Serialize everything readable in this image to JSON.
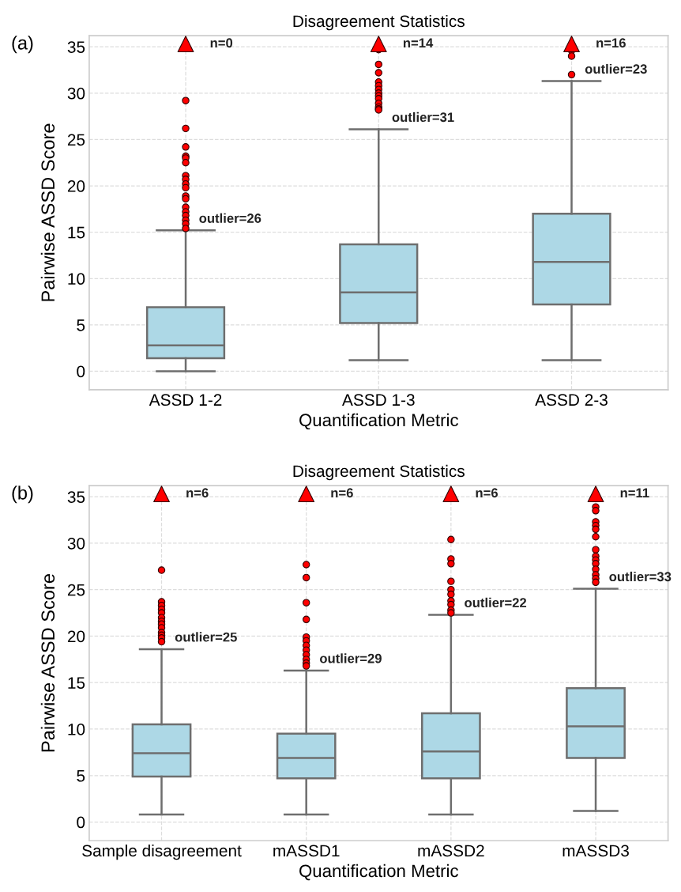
{
  "chart_data": [
    {
      "type": "box",
      "title": "Disagreement Statistics",
      "xlabel": "Quantification Metric",
      "ylabel": "Pairwise ASSD Score",
      "categories": [
        "ASSD 1-2",
        "ASSD 1-3",
        "ASSD 2-3"
      ],
      "color": "#add8e6",
      "boxes": [
        {
          "low": 0,
          "q1": 1.4,
          "median": 2.8,
          "q3": 6.9,
          "high": 15.2,
          "outliers": [
            29.2,
            26.2,
            24.2,
            23.2,
            23.0,
            22.5,
            21.1,
            20.7,
            20.2,
            19.8,
            18.9,
            18.6,
            17.7,
            17.2,
            16.8,
            16.3,
            15.9,
            15.4
          ]
        },
        {
          "low": 1.2,
          "q1": 5.2,
          "median": 8.5,
          "q3": 13.7,
          "high": 26.1,
          "outliers": [
            34.7,
            33.1,
            32.2,
            31.2,
            30.8,
            30.4,
            30.0,
            29.7,
            29.4,
            28.9,
            28.5,
            28.3,
            28.2
          ]
        },
        {
          "low": 1.2,
          "q1": 7.2,
          "median": 11.8,
          "q3": 17.0,
          "high": 31.3,
          "outliers": [
            34.6,
            34.0,
            32.0
          ]
        }
      ],
      "series": [
        {
          "type": "scatter",
          "color": "#ff0000",
          "marker": "triangle",
          "x": [
            "ASSD 1-2",
            "ASSD 1-3",
            "ASSD 2-3"
          ],
          "values": [
            35.3,
            35.3,
            35.3
          ]
        }
      ],
      "ylim": [
        -2,
        36.2
      ],
      "yticks": [
        0,
        5,
        10,
        15,
        20,
        25,
        30,
        35
      ],
      "grid": true,
      "annotations": [
        "(a)",
        {
          "text": "n=0",
          "x": "ASSD 1-2",
          "y": 35.3
        },
        {
          "text": "n=14",
          "x": "ASSD 1-3",
          "y": 35.3
        },
        {
          "text": "n=16",
          "x": "ASSD 2-3",
          "y": 35.3
        },
        "outlier=26",
        "outlier=31",
        "outlier=23"
      ]
    },
    {
      "type": "box",
      "title": "Disagreement Statistics",
      "xlabel": "Quantification Metric",
      "ylabel": "Pairwise ASSD Score",
      "categories": [
        "Sample disagreement",
        "mASSD1",
        "mASSD2",
        "mASSD3"
      ],
      "color": "#add8e6",
      "boxes": [
        {
          "low": 0.8,
          "q1": 4.9,
          "median": 7.4,
          "q3": 10.5,
          "high": 18.6,
          "outliers": [
            27.1,
            23.7,
            23.3,
            22.9,
            22.5,
            22.0,
            21.6,
            21.3,
            20.9,
            20.4,
            20.1,
            19.8,
            19.4
          ]
        },
        {
          "low": 0.8,
          "q1": 4.7,
          "median": 6.9,
          "q3": 9.5,
          "high": 16.3,
          "outliers": [
            27.7,
            26.3,
            23.6,
            21.8,
            19.9,
            19.5,
            19.0,
            18.5,
            18.0,
            17.5,
            17.1,
            16.8
          ]
        },
        {
          "low": 0.8,
          "q1": 4.7,
          "median": 7.6,
          "q3": 11.7,
          "high": 22.3,
          "outliers": [
            30.4,
            28.3,
            27.8,
            25.9,
            25.0,
            24.5,
            23.8,
            23.4,
            22.8,
            22.5
          ]
        },
        {
          "low": 1.2,
          "q1": 6.9,
          "median": 10.3,
          "q3": 14.4,
          "high": 25.1,
          "outliers": [
            33.9,
            33.5,
            32.3,
            31.9,
            31.5,
            30.7,
            29.3,
            28.6,
            28.2,
            27.8,
            27.2,
            26.6,
            26.2,
            25.8
          ]
        }
      ],
      "series": [
        {
          "type": "scatter",
          "color": "#ff0000",
          "marker": "triangle",
          "x": [
            "Sample disagreement",
            "mASSD1",
            "mASSD2",
            "mASSD3"
          ],
          "values": [
            35.3,
            35.3,
            35.3,
            35.3
          ]
        }
      ],
      "ylim": [
        -2,
        36.2
      ],
      "yticks": [
        0,
        5,
        10,
        15,
        20,
        25,
        30,
        35
      ],
      "grid": true,
      "annotations": [
        "(b)",
        {
          "text": "n=6",
          "x": "Sample disagreement",
          "y": 35.3
        },
        {
          "text": "n=6",
          "x": "mASSD1",
          "y": 35.3
        },
        {
          "text": "n=6",
          "x": "mASSD2",
          "y": 35.3
        },
        {
          "text": "n=11",
          "x": "mASSD3",
          "y": 35.3
        },
        "outlier=25",
        "outlier=29",
        "outlier=22",
        "outlier=33"
      ]
    }
  ]
}
